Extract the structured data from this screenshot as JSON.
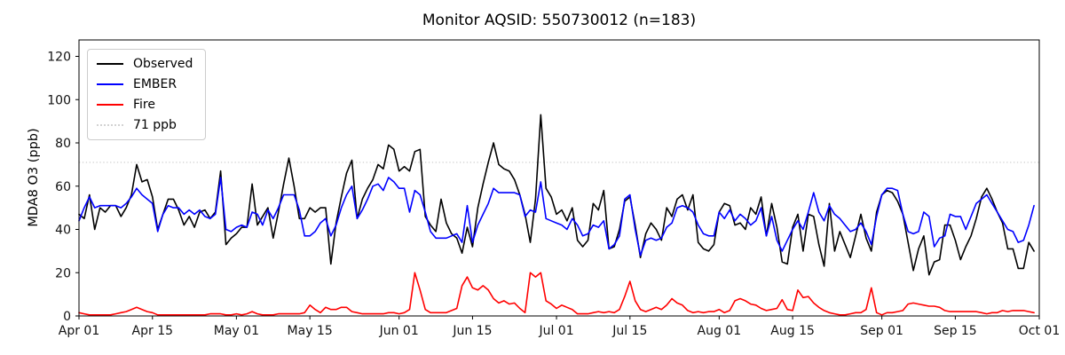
{
  "title": "Monitor AQSID: 550730012 (n=183)",
  "y_axis": {
    "label": "MDA8 O3 (ppb)",
    "ticks": [
      0,
      20,
      40,
      60,
      80,
      100,
      120
    ]
  },
  "x_axis": {
    "ticks": [
      {
        "label": "Apr 01",
        "day": 0
      },
      {
        "label": "Apr 15",
        "day": 14
      },
      {
        "label": "May 01",
        "day": 30
      },
      {
        "label": "May 15",
        "day": 44
      },
      {
        "label": "Jun 01",
        "day": 61
      },
      {
        "label": "Jun 15",
        "day": 75
      },
      {
        "label": "Jul 01",
        "day": 91
      },
      {
        "label": "Jul 15",
        "day": 105
      },
      {
        "label": "Aug 01",
        "day": 122
      },
      {
        "label": "Aug 15",
        "day": 136
      },
      {
        "label": "Sep 01",
        "day": 153
      },
      {
        "label": "Sep 15",
        "day": 167
      },
      {
        "label": "Oct 01",
        "day": 183
      }
    ]
  },
  "legend": {
    "entries": [
      {
        "label": "Observed",
        "color": "#000000",
        "linestyle": "solid"
      },
      {
        "label": "EMBER",
        "color": "#0000ff",
        "linestyle": "solid"
      },
      {
        "label": "Fire",
        "color": "#ff0000",
        "linestyle": "solid"
      },
      {
        "label": "71 ppb",
        "color": "#d3d3d3",
        "linestyle": "dotted"
      }
    ]
  },
  "chart_data": {
    "type": "line",
    "title": "Monitor AQSID: 550730012 (n=183)",
    "xlabel": "",
    "ylabel": "MDA8 O3 (ppb)",
    "x_unit": "day (daily values, Apr 01 through Sep 30)",
    "x_start_label": "Apr 01",
    "x_end_label": "Sep 30",
    "n_points": 183,
    "xlim_days": [
      0,
      183
    ],
    "ylim": [
      0,
      127.5
    ],
    "grid": false,
    "legend_position": "upper left",
    "threshold_line": {
      "value": 71,
      "label": "71 ppb",
      "color": "#d3d3d3",
      "style": "dotted"
    },
    "series": [
      {
        "name": "Observed",
        "color": "#000000",
        "values": [
          47,
          45,
          56,
          40,
          50,
          48,
          51,
          51,
          46,
          50,
          56,
          70,
          62,
          63,
          55,
          40,
          47,
          54,
          54,
          49,
          42,
          46,
          41,
          48,
          49,
          45,
          48,
          67,
          33,
          36,
          38,
          41,
          41,
          61,
          42,
          46,
          50,
          36,
          48,
          61,
          73,
          60,
          45,
          45,
          50,
          48,
          50,
          50,
          24,
          43,
          55,
          66,
          72,
          45,
          54,
          59,
          63,
          70,
          68,
          79,
          77,
          67,
          69,
          67,
          76,
          77,
          46,
          42,
          39,
          54,
          43,
          38,
          36,
          29,
          41,
          32,
          50,
          61,
          71,
          80,
          70,
          68,
          67,
          63,
          56,
          47,
          34,
          54,
          93,
          59,
          55,
          47,
          49,
          44,
          50,
          35,
          32,
          35,
          52,
          49,
          58,
          31,
          32,
          40,
          53,
          55,
          42,
          27,
          38,
          43,
          40,
          35,
          50,
          46,
          54,
          56,
          49,
          56,
          34,
          31,
          30,
          33,
          48,
          52,
          51,
          42,
          43,
          40,
          50,
          47,
          55,
          37,
          52,
          41,
          25,
          24,
          41,
          47,
          30,
          47,
          46,
          33,
          23,
          52,
          30,
          39,
          33,
          27,
          37,
          47,
          36,
          30,
          48,
          56,
          58,
          57,
          53,
          47,
          34,
          21,
          31,
          37,
          19,
          25,
          26,
          42,
          42,
          35,
          26,
          32,
          37,
          45,
          55,
          59,
          54,
          48,
          43,
          31,
          31,
          22,
          22,
          34,
          30
        ]
      },
      {
        "name": "EMBER",
        "color": "#0000ff",
        "values": [
          44,
          50,
          55,
          50,
          51,
          51,
          51,
          51,
          50,
          52,
          55,
          59,
          56,
          54,
          52,
          39,
          47,
          51,
          50,
          50,
          47,
          49,
          47,
          49,
          46,
          45,
          47,
          64,
          40,
          39,
          41,
          42,
          41,
          48,
          47,
          42,
          49,
          45,
          50,
          56,
          56,
          56,
          49,
          37,
          37,
          39,
          43,
          45,
          37,
          42,
          50,
          56,
          60,
          45,
          49,
          54,
          60,
          61,
          58,
          64,
          62,
          59,
          59,
          48,
          58,
          56,
          48,
          39,
          36,
          36,
          36,
          37,
          38,
          34,
          51,
          34,
          42,
          47,
          52,
          59,
          57,
          57,
          57,
          57,
          56,
          46,
          49,
          48,
          62,
          45,
          44,
          43,
          42,
          40,
          45,
          42,
          37,
          38,
          42,
          41,
          44,
          31,
          33,
          37,
          54,
          56,
          40,
          28,
          35,
          36,
          35,
          36,
          41,
          43,
          50,
          51,
          50,
          48,
          42,
          38,
          37,
          37,
          48,
          45,
          49,
          44,
          47,
          45,
          42,
          44,
          50,
          37,
          46,
          35,
          30,
          35,
          40,
          44,
          40,
          48,
          57,
          48,
          44,
          51,
          47,
          45,
          42,
          39,
          40,
          43,
          39,
          33,
          46,
          56,
          59,
          59,
          58,
          47,
          39,
          38,
          39,
          48,
          46,
          32,
          36,
          37,
          47,
          46,
          46,
          40,
          46,
          52,
          54,
          56,
          52,
          48,
          44,
          40,
          39,
          34,
          35,
          42,
          51
        ]
      },
      {
        "name": "Fire",
        "color": "#ff0000",
        "values": [
          1.5,
          1,
          0.5,
          0.5,
          0.5,
          0.5,
          0.5,
          1,
          1.5,
          2,
          3,
          4,
          3,
          2,
          1.5,
          0.5,
          0.5,
          0.5,
          0.5,
          0.5,
          0.5,
          0.5,
          0.5,
          0.5,
          0.5,
          1,
          1,
          1,
          0.5,
          0.5,
          1,
          0.5,
          1,
          2,
          1,
          0.5,
          0.5,
          0.5,
          1,
          1,
          1,
          1,
          1,
          1.5,
          5,
          3,
          1.5,
          4,
          3,
          3,
          4,
          4,
          2,
          1.5,
          1,
          1,
          1,
          1,
          1,
          1.5,
          1.5,
          1,
          1.5,
          3,
          20,
          12,
          3,
          1.5,
          1.5,
          1.5,
          1.5,
          2.5,
          3.5,
          14,
          18,
          13,
          12,
          14,
          12,
          8,
          6,
          7,
          5.5,
          6,
          3.5,
          1.5,
          20,
          18,
          20,
          7,
          5.5,
          3.5,
          5,
          4,
          3,
          1,
          1,
          1,
          1.5,
          2,
          1.5,
          2,
          1.5,
          3,
          9,
          16,
          7,
          3,
          2,
          3,
          4,
          3,
          5,
          8,
          6,
          5,
          2.5,
          1.5,
          2,
          1.5,
          2,
          2,
          3,
          1.5,
          2.5,
          7,
          8,
          7,
          5.5,
          5,
          3.5,
          2.5,
          3,
          3.5,
          7.5,
          3,
          2.5,
          12,
          8.5,
          9,
          6,
          4,
          2.5,
          1.5,
          1,
          0.5,
          0.5,
          1,
          1.5,
          1.5,
          3,
          13,
          1.5,
          0.5,
          1.5,
          1.5,
          2,
          2.5,
          5.5,
          6,
          5.5,
          5,
          4.5,
          4.5,
          4,
          2.5,
          2,
          2,
          2,
          2,
          2,
          2,
          1.5,
          1,
          1.5,
          1.5,
          2.5,
          2,
          2.5,
          2.5,
          2.5,
          2,
          1.5
        ]
      }
    ]
  }
}
